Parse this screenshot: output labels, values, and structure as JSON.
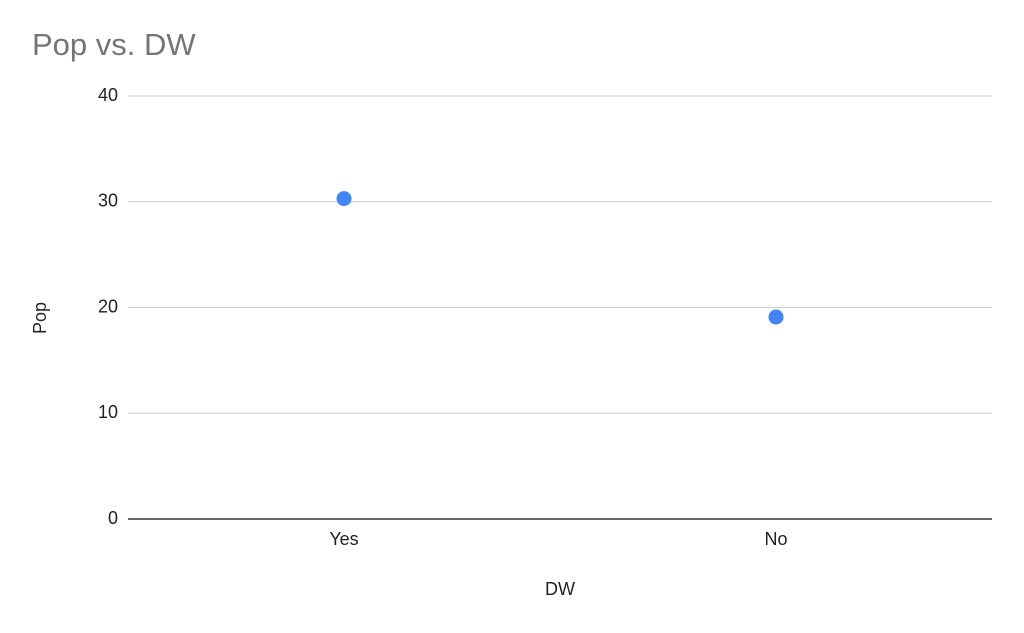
{
  "chart_data": {
    "type": "scatter",
    "title": "Pop vs. DW",
    "x_label": "DW",
    "y_label": "Pop",
    "categories": [
      "Yes",
      "No"
    ],
    "values": [
      30.3,
      19.1
    ],
    "color": "#4285f4",
    "ylim": [
      0,
      40
    ],
    "yticks": [
      0,
      10,
      20,
      30,
      40
    ],
    "grid": true
  }
}
